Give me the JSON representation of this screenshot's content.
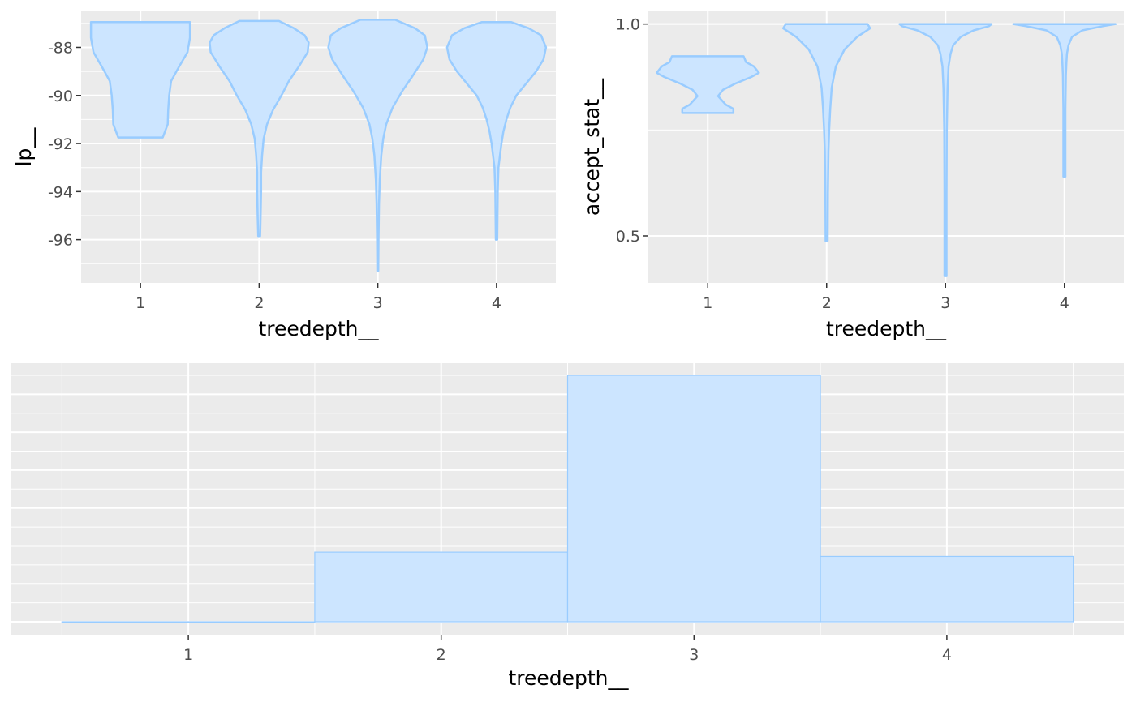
{
  "figure": {
    "colors": {
      "panel_bg": "#ebebeb",
      "grid": "#ffffff",
      "fill": "#cce5ff",
      "line": "#99ccff"
    }
  },
  "chart_data": [
    {
      "type": "violin",
      "xlabel": "treedepth__",
      "ylabel": "lp__",
      "categories": [
        "1",
        "2",
        "3",
        "4"
      ],
      "ylim": [
        -97.8,
        -86.5
      ],
      "y_ticks": [
        -96,
        -94,
        -92,
        -90,
        -88
      ],
      "y_tick_labels": [
        "-96",
        "-94",
        "-92",
        "-90",
        "-88"
      ],
      "series": [
        {
          "category": "1",
          "min": -91.75,
          "max": -86.95,
          "profile": [
            [
              -91.75,
              0.45
            ],
            [
              -91.2,
              0.55
            ],
            [
              -90.6,
              0.56
            ],
            [
              -90,
              0.58
            ],
            [
              -89.4,
              0.62
            ],
            [
              -88.8,
              0.78
            ],
            [
              -88.2,
              0.95
            ],
            [
              -87.6,
              1.0
            ],
            [
              -87.2,
              1.0
            ],
            [
              -86.95,
              1.0
            ]
          ]
        },
        {
          "category": "2",
          "min": -95.85,
          "max": -86.9,
          "profile": [
            [
              -95.85,
              0.02
            ],
            [
              -95,
              0.03
            ],
            [
              -94,
              0.04
            ],
            [
              -93.2,
              0.04
            ],
            [
              -92.5,
              0.06
            ],
            [
              -91.8,
              0.09
            ],
            [
              -91.2,
              0.16
            ],
            [
              -90.6,
              0.28
            ],
            [
              -90,
              0.45
            ],
            [
              -89.4,
              0.6
            ],
            [
              -88.8,
              0.8
            ],
            [
              -88.2,
              0.98
            ],
            [
              -87.8,
              1.0
            ],
            [
              -87.5,
              0.92
            ],
            [
              -87.2,
              0.7
            ],
            [
              -86.9,
              0.4
            ]
          ]
        },
        {
          "category": "3",
          "min": -97.3,
          "max": -86.85,
          "profile": [
            [
              -97.3,
              0.01
            ],
            [
              -96,
              0.015
            ],
            [
              -94.5,
              0.025
            ],
            [
              -93.5,
              0.04
            ],
            [
              -92.5,
              0.07
            ],
            [
              -91.8,
              0.11
            ],
            [
              -91.2,
              0.17
            ],
            [
              -90.5,
              0.3
            ],
            [
              -89.8,
              0.5
            ],
            [
              -89.2,
              0.7
            ],
            [
              -88.5,
              0.92
            ],
            [
              -88,
              1.0
            ],
            [
              -87.5,
              0.95
            ],
            [
              -87.2,
              0.75
            ],
            [
              -86.85,
              0.35
            ]
          ]
        },
        {
          "category": "4",
          "min": -96.0,
          "max": -86.95,
          "profile": [
            [
              -96,
              0.015
            ],
            [
              -95,
              0.02
            ],
            [
              -94,
              0.025
            ],
            [
              -93,
              0.04
            ],
            [
              -92.5,
              0.07
            ],
            [
              -92,
              0.1
            ],
            [
              -91.5,
              0.14
            ],
            [
              -91,
              0.2
            ],
            [
              -90.5,
              0.28
            ],
            [
              -90,
              0.4
            ],
            [
              -89.5,
              0.6
            ],
            [
              -89,
              0.8
            ],
            [
              -88.5,
              0.95
            ],
            [
              -88,
              1.0
            ],
            [
              -87.5,
              0.9
            ],
            [
              -87.2,
              0.65
            ],
            [
              -86.95,
              0.3
            ]
          ]
        }
      ]
    },
    {
      "type": "violin",
      "xlabel": "treedepth__",
      "ylabel": "accept_stat__",
      "categories": [
        "1",
        "2",
        "3",
        "4"
      ],
      "ylim": [
        0.389,
        1.03
      ],
      "y_ticks": [
        0.5,
        1.0
      ],
      "y_tick_labels": [
        "0.5",
        "1.0"
      ],
      "series": [
        {
          "category": "1",
          "min": 0.79,
          "max": 0.924,
          "profile": [
            [
              0.79,
              0.5
            ],
            [
              0.8,
              0.5
            ],
            [
              0.81,
              0.35
            ],
            [
              0.83,
              0.2
            ],
            [
              0.845,
              0.3
            ],
            [
              0.86,
              0.55
            ],
            [
              0.875,
              0.85
            ],
            [
              0.885,
              1.0
            ],
            [
              0.9,
              0.9
            ],
            [
              0.91,
              0.75
            ],
            [
              0.924,
              0.7
            ]
          ]
        },
        {
          "category": "2",
          "min": 0.488,
          "max": 1.0,
          "profile": [
            [
              0.488,
              0.02
            ],
            [
              0.6,
              0.025
            ],
            [
              0.7,
              0.035
            ],
            [
              0.75,
              0.05
            ],
            [
              0.8,
              0.07
            ],
            [
              0.85,
              0.1
            ],
            [
              0.9,
              0.18
            ],
            [
              0.94,
              0.35
            ],
            [
              0.97,
              0.6
            ],
            [
              0.99,
              0.85
            ],
            [
              1.0,
              0.8
            ]
          ]
        },
        {
          "category": "3",
          "min": 0.405,
          "max": 1.0,
          "profile": [
            [
              0.405,
              0.02
            ],
            [
              0.6,
              0.02
            ],
            [
              0.75,
              0.025
            ],
            [
              0.85,
              0.04
            ],
            [
              0.9,
              0.06
            ],
            [
              0.93,
              0.1
            ],
            [
              0.95,
              0.15
            ],
            [
              0.97,
              0.3
            ],
            [
              0.985,
              0.55
            ],
            [
              0.995,
              0.85
            ],
            [
              1.0,
              0.9
            ]
          ]
        },
        {
          "category": "4",
          "min": 0.64,
          "max": 1.0,
          "profile": [
            [
              0.64,
              0.02
            ],
            [
              0.8,
              0.02
            ],
            [
              0.88,
              0.03
            ],
            [
              0.91,
              0.04
            ],
            [
              0.93,
              0.05
            ],
            [
              0.95,
              0.08
            ],
            [
              0.97,
              0.15
            ],
            [
              0.985,
              0.35
            ],
            [
              0.995,
              0.75
            ],
            [
              1.0,
              1.0
            ]
          ]
        }
      ]
    },
    {
      "type": "bar",
      "xlabel": "treedepth__",
      "categories": [
        "1",
        "2",
        "3",
        "4"
      ],
      "values": [
        0,
        0.2825,
        1.0,
        0.265
      ],
      "y_tick_labels": []
    }
  ]
}
